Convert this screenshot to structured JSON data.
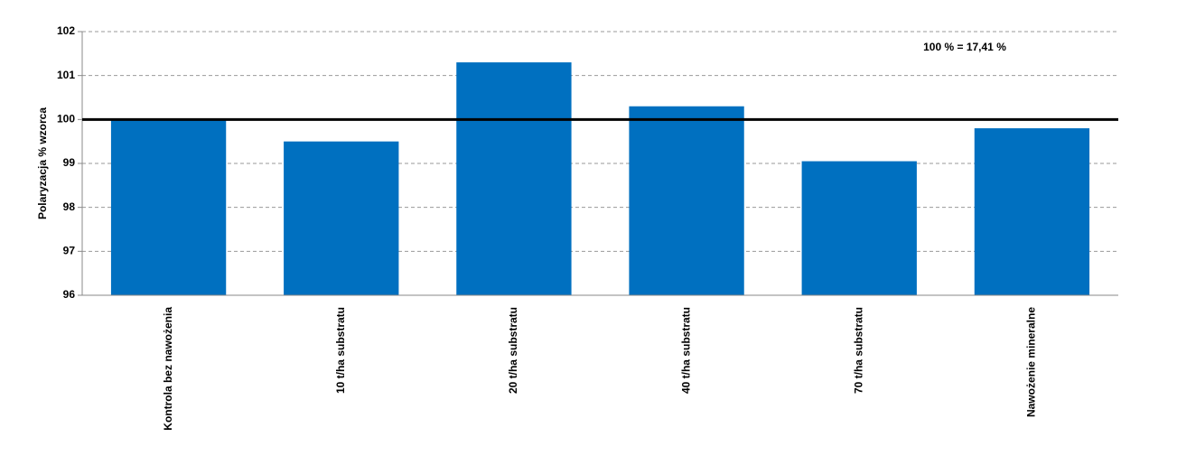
{
  "chart_data": {
    "type": "bar",
    "y_label": "Polaryzacja % wzorca",
    "annotation": "100 % =  17,41 %",
    "categories": [
      "Kontrola bez nawożenia",
      "10 t/ha substratu",
      "20 t/ha substratu",
      "40 t/ha substratu",
      "70 t/ha substratu",
      "Nawożenie mineralne"
    ],
    "values": [
      100,
      99.5,
      101.3,
      100.3,
      99.05,
      99.8
    ],
    "color": "#0070c0",
    "ylim": [
      96,
      102
    ],
    "yticks": [
      96,
      97,
      98,
      99,
      100,
      101,
      102
    ],
    "grid": true,
    "reference_line": 100
  }
}
